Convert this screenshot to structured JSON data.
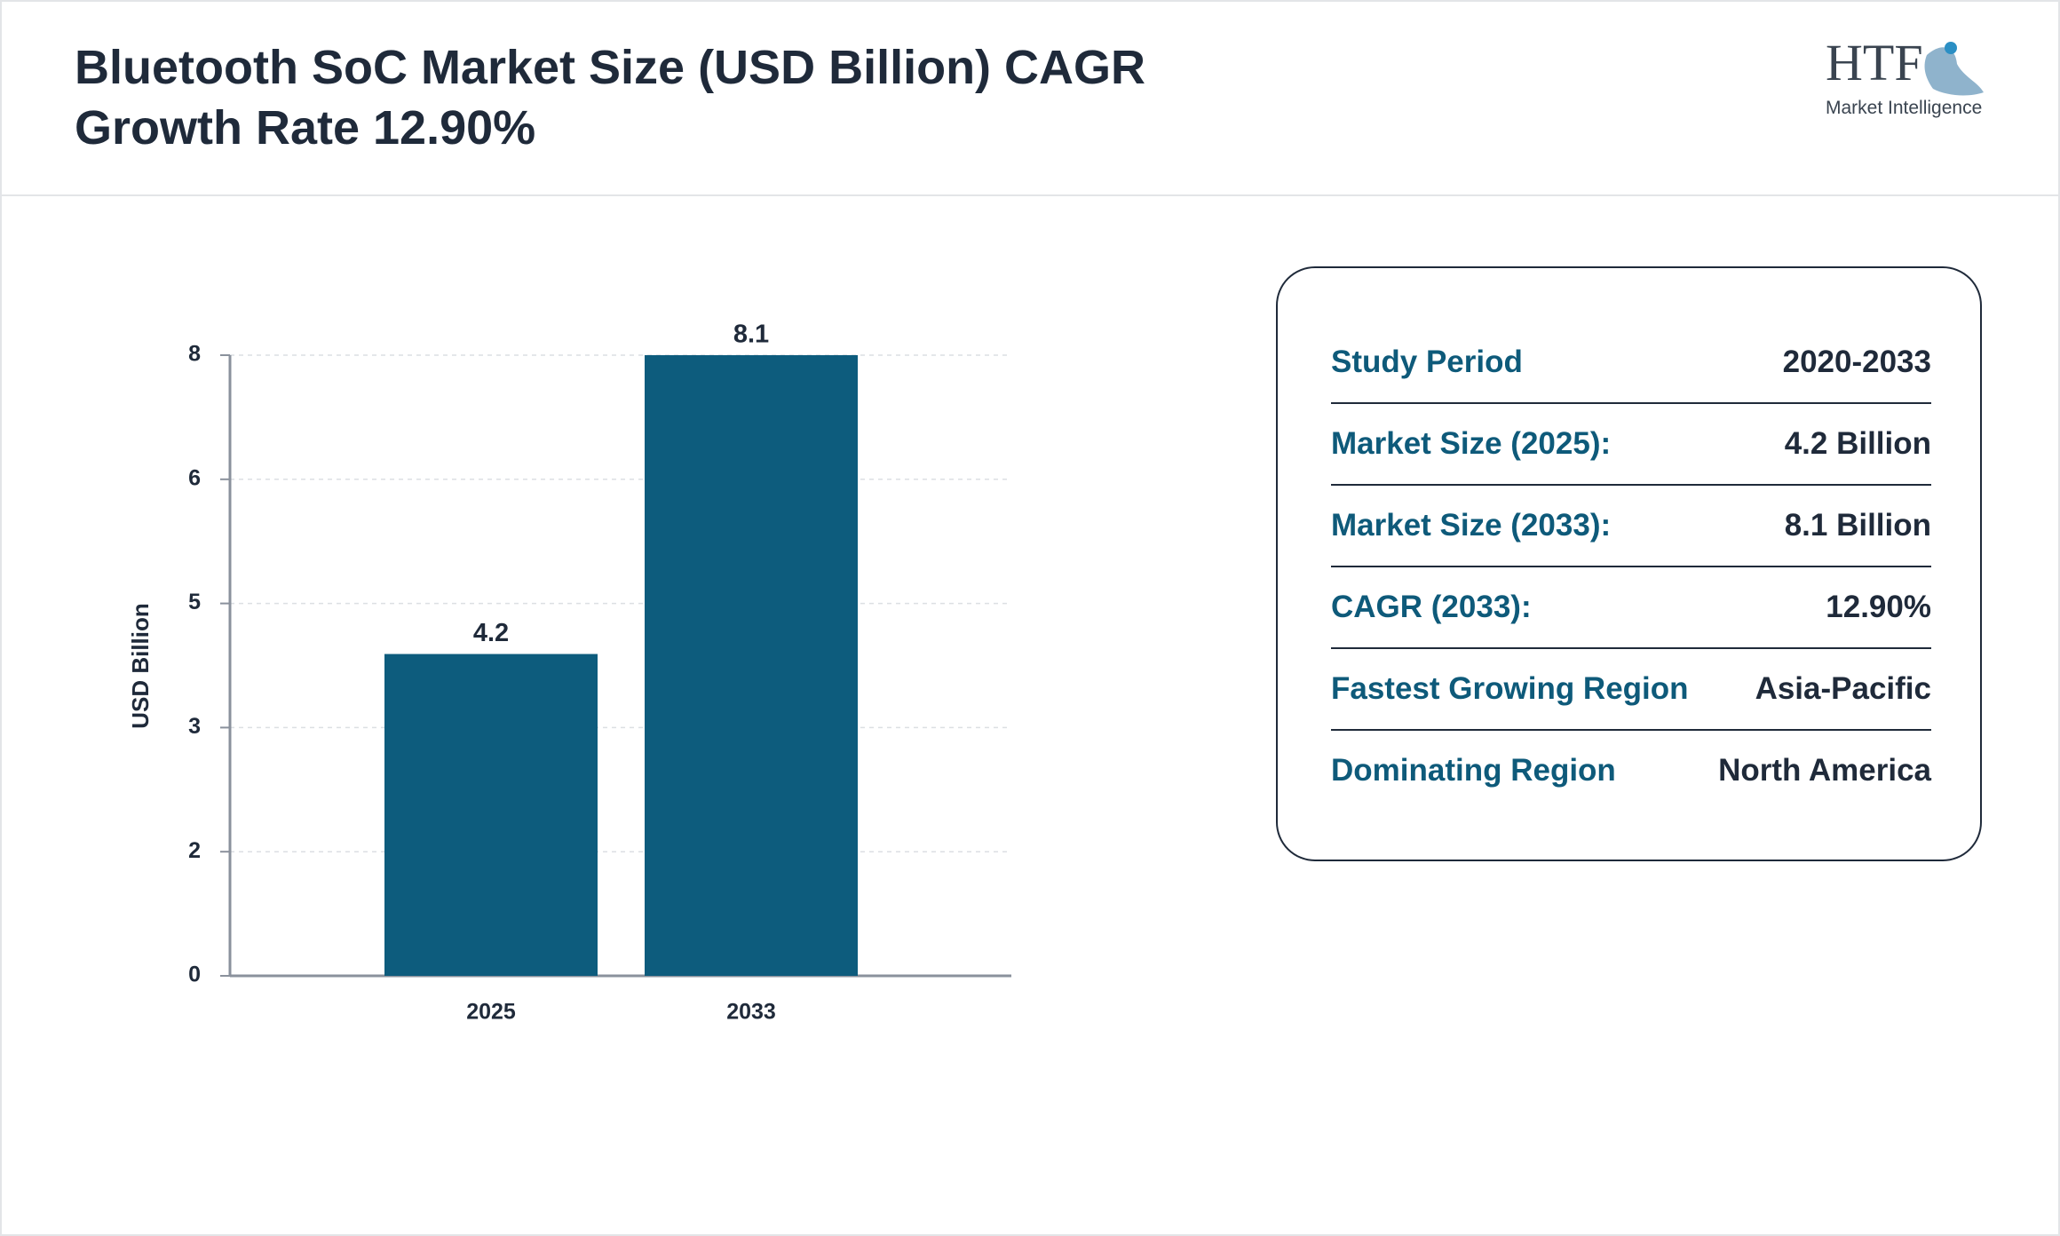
{
  "chart_data": {
    "type": "bar",
    "title": "Bluetooth SoC Market Size (USD Billion) CAGR Growth Rate 12.90%",
    "y_label": "USD Billion",
    "categories": [
      "2025",
      "2033"
    ],
    "values": [
      4.2,
      8.1
    ],
    "color": "#0d5c7d",
    "ylim": [
      0,
      8.1
    ],
    "yticks": [
      0,
      {
        "value": 1.62,
        "label": "2"
      },
      {
        "value": 3.24,
        "label": "3"
      },
      {
        "value": 4.86,
        "label": "5"
      },
      {
        "value": 6.48,
        "label": "6"
      },
      {
        "value": 8.1,
        "label": "8"
      }
    ],
    "grid": true
  },
  "logo": {
    "mark": "HTF",
    "tagline": "Market Intelligence"
  },
  "summary": {
    "rows": [
      [
        "Study Period",
        "2020-2033"
      ],
      [
        "Market Size (2025):",
        "4.2 Billion"
      ],
      [
        "Market Size (2033):",
        "8.1 Billion"
      ],
      [
        "CAGR (2033):",
        "12.90%"
      ],
      [
        "Fastest Growing Region",
        "Asia-Pacific"
      ],
      [
        "Dominating Region",
        "North America"
      ]
    ]
  }
}
